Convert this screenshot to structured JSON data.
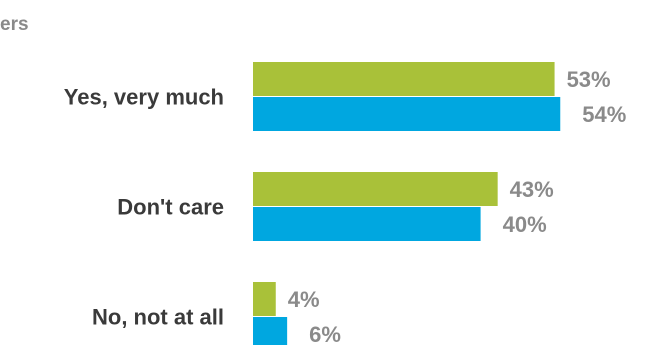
{
  "chart_data": {
    "type": "bar",
    "orientation": "horizontal",
    "categories": [
      "Yes, very much",
      "Don't care",
      "No, not at all"
    ],
    "series": [
      {
        "values": [
          53,
          43,
          4
        ],
        "color": "#a9c139"
      },
      {
        "values": [
          54,
          40,
          6
        ],
        "color": "#00a7e0"
      }
    ],
    "value_suffix": "%",
    "partial_legend_text": "ers",
    "xlim": [
      0,
      60
    ],
    "grid": false
  }
}
